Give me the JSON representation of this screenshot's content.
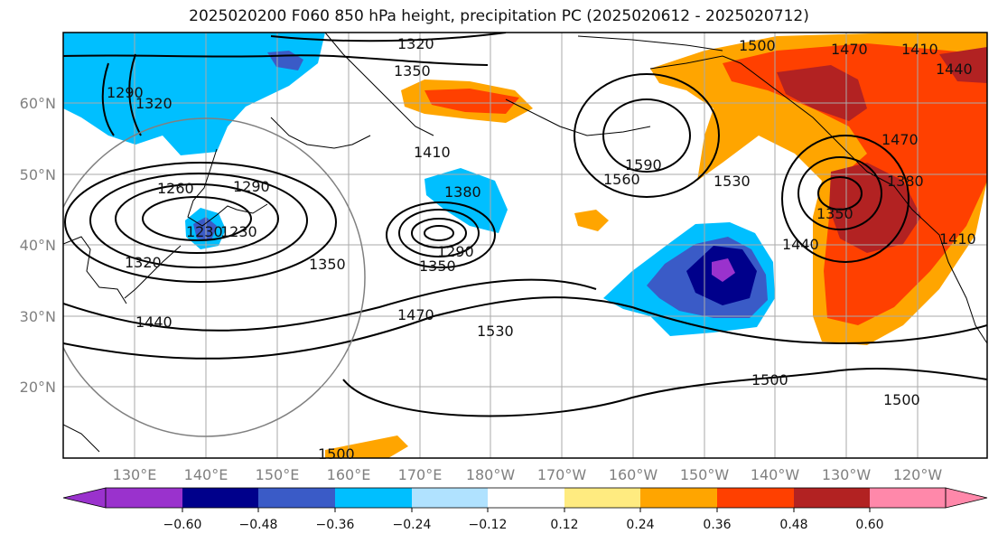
{
  "title": "2025020200 F060 850 hPa height, precipitation PC (2025020612 - 2025020712)",
  "map": {
    "lon_labels": [
      "130°E",
      "140°E",
      "150°E",
      "160°E",
      "170°E",
      "180°W",
      "170°W",
      "160°W",
      "150°W",
      "140°W",
      "130°W",
      "120°W"
    ],
    "lat_labels": [
      "20°N",
      "30°N",
      "40°N",
      "50°N",
      "60°N"
    ],
    "contour_labels": [
      "1320",
      "1350",
      "1500",
      "1470",
      "1410",
      "1440",
      "1470",
      "1290",
      "1320",
      "1260",
      "1290",
      "1230",
      "1230",
      "1410",
      "1380",
      "1590",
      "1560",
      "1530",
      "1380",
      "1350",
      "1290",
      "1350",
      "1320",
      "1350",
      "1440",
      "1470",
      "1530",
      "1410",
      "1440",
      "1500",
      "1500",
      "1500"
    ],
    "colors": {
      "land_outline": "#000000",
      "contour": "#000000",
      "grid": "#aaaaaa",
      "circle": "#808080"
    }
  },
  "colorbar": {
    "ticks": [
      "−0.60",
      "−0.48",
      "−0.36",
      "−0.24",
      "−0.12",
      "0.12",
      "0.24",
      "0.36",
      "0.48",
      "0.60"
    ],
    "colors": [
      "#9a32cd",
      "#00008b",
      "#3a5bc7",
      "#00bfff",
      "#b0e2ff",
      "#ffffff",
      "#ffeb80",
      "#ffa500",
      "#ff4000",
      "#b22222",
      "#ff88aa"
    ]
  }
}
